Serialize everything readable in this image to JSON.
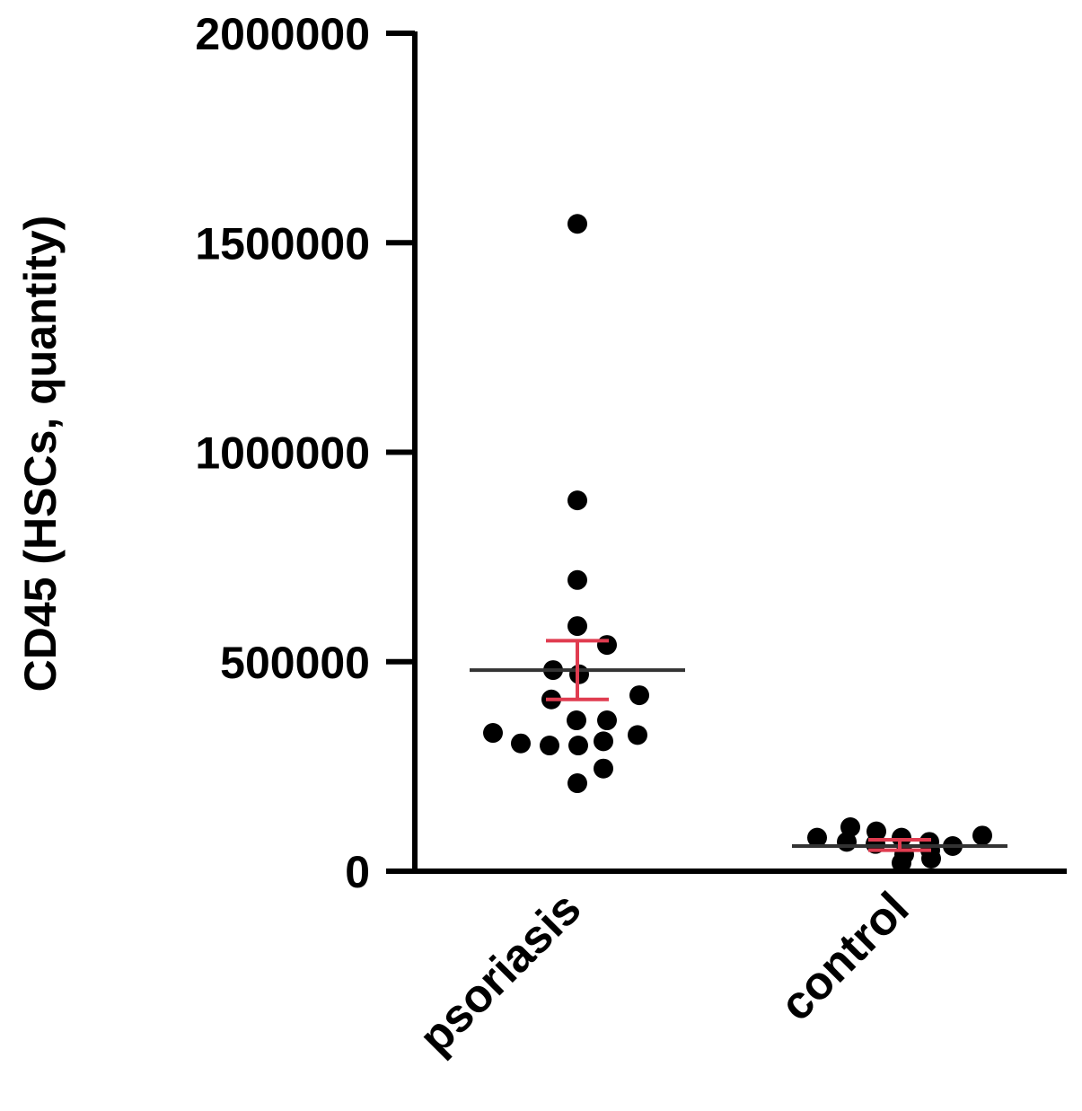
{
  "chart_data": {
    "type": "scatter",
    "title": "",
    "xlabel": "",
    "ylabel": "CD45 (HSCs, quantity)",
    "ylim": [
      0,
      2000000
    ],
    "yticks": [
      {
        "value": 0,
        "label": "0"
      },
      {
        "value": 500000,
        "label": "500000"
      },
      {
        "value": 1000000,
        "label": "1000000"
      },
      {
        "value": 1500000,
        "label": "1500000"
      },
      {
        "value": 2000000,
        "label": "2000000"
      }
    ],
    "categories": [
      "psoriasis",
      "control"
    ],
    "series": [
      {
        "category": "psoriasis",
        "values": [
          1545000,
          885000,
          695000,
          585000,
          540000,
          480000,
          470000,
          420000,
          410000,
          360000,
          360000,
          330000,
          325000,
          310000,
          305000,
          300000,
          300000,
          245000,
          210000
        ],
        "mean": 480000,
        "error_upper": 550000,
        "error_lower": 410000
      },
      {
        "category": "control",
        "values": [
          105000,
          95000,
          85000,
          80000,
          80000,
          70000,
          70000,
          65000,
          60000,
          50000,
          40000,
          30000,
          20000
        ],
        "mean": 60000,
        "error_upper": 75000,
        "error_lower": 50000
      }
    ],
    "colors": {
      "points": "#000000",
      "mean_line": "#333333",
      "error_bar": "#e03c50",
      "axis": "#000000"
    },
    "grid": false,
    "legend": "none"
  }
}
